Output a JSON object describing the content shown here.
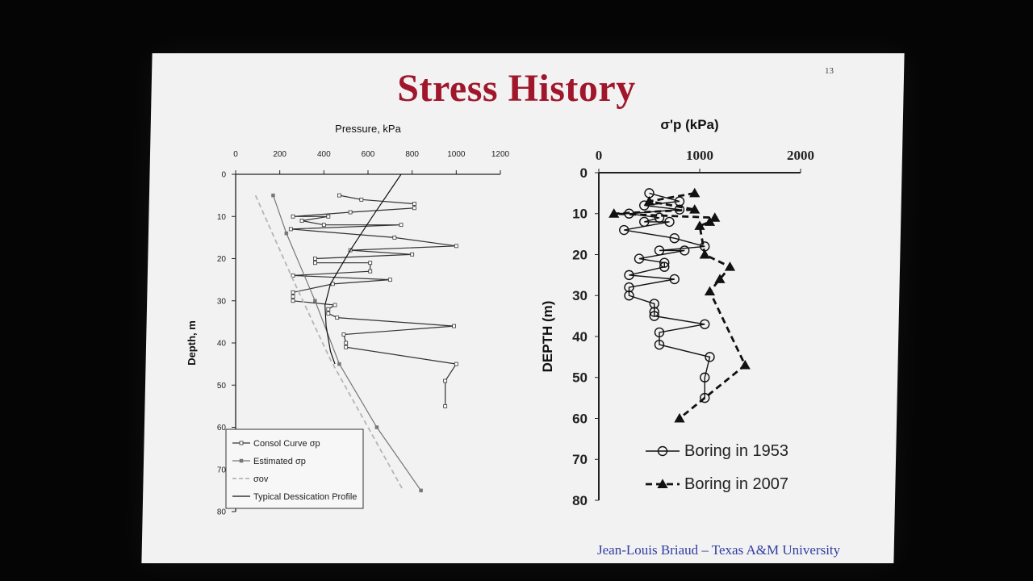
{
  "slide": {
    "title": "Stress History",
    "number": "13",
    "footer": "Jean-Louis Briaud – Texas A&M University"
  },
  "chart_data": [
    {
      "type": "line",
      "title": "",
      "xlabel": "Pressure, kPa",
      "ylabel": "Depth, m",
      "x_axis_position": "top",
      "xlim": [
        0,
        1200
      ],
      "ylim": [
        0,
        80
      ],
      "y_inverted": true,
      "x_ticks": [
        "0",
        "200",
        "400",
        "600",
        "800",
        "1000",
        "1200"
      ],
      "y_ticks": [
        "0",
        "10",
        "20",
        "30",
        "40",
        "50",
        "60",
        "70",
        "80"
      ],
      "grid": false,
      "legend_position": "bottom-left",
      "series": [
        {
          "name": "Consol Curve σp",
          "marker": "open-square",
          "color": "#333333",
          "points": [
            [
              470,
              5
            ],
            [
              570,
              6
            ],
            [
              810,
              7
            ],
            [
              810,
              8
            ],
            [
              520,
              9
            ],
            [
              260,
              10
            ],
            [
              420,
              10
            ],
            [
              300,
              11
            ],
            [
              400,
              12
            ],
            [
              750,
              12
            ],
            [
              250,
              13
            ],
            [
              720,
              15
            ],
            [
              1000,
              17
            ],
            [
              520,
              18
            ],
            [
              800,
              19
            ],
            [
              360,
              20
            ],
            [
              360,
              21
            ],
            [
              610,
              21
            ],
            [
              610,
              23
            ],
            [
              260,
              24
            ],
            [
              700,
              25
            ],
            [
              440,
              26
            ],
            [
              260,
              28
            ],
            [
              260,
              29
            ],
            [
              260,
              30
            ],
            [
              450,
              31
            ],
            [
              420,
              32
            ],
            [
              420,
              33
            ],
            [
              460,
              34
            ],
            [
              990,
              36
            ],
            [
              490,
              38
            ],
            [
              500,
              40
            ],
            [
              500,
              41
            ],
            [
              1000,
              45
            ],
            [
              950,
              49
            ],
            [
              950,
              55
            ]
          ]
        },
        {
          "name": "Estimated σp",
          "marker": "filled-square",
          "color": "#777777",
          "points": [
            [
              170,
              5
            ],
            [
              230,
              14
            ],
            [
              360,
              30
            ],
            [
              470,
              45
            ],
            [
              640,
              60
            ],
            [
              840,
              75
            ]
          ]
        },
        {
          "name": "σov",
          "style": "dashed",
          "color": "#b5b5b5",
          "points": [
            [
              90,
              5
            ],
            [
              260,
              25
            ],
            [
              430,
              44
            ],
            [
              600,
              60
            ],
            [
              760,
              75
            ]
          ]
        },
        {
          "name": "Typical Dessication Profile",
          "color": "#111111",
          "points": [
            [
              750,
              0
            ],
            [
              620,
              10
            ],
            [
              520,
              18
            ],
            [
              430,
              26
            ],
            [
              405,
              31
            ],
            [
              410,
              36
            ],
            [
              430,
              42
            ],
            [
              450,
              45
            ]
          ]
        }
      ]
    },
    {
      "type": "line",
      "title": "",
      "xlabel": "σ'p (kPa)",
      "ylabel": "DEPTH (m)",
      "x_axis_position": "top",
      "xlim": [
        0,
        2000
      ],
      "ylim": [
        0,
        80
      ],
      "y_inverted": true,
      "x_ticks": [
        "0",
        "1000",
        "2000"
      ],
      "y_ticks": [
        "0",
        "10",
        "20",
        "30",
        "40",
        "50",
        "60",
        "70",
        "80"
      ],
      "grid": false,
      "legend_position": "bottom-right",
      "series": [
        {
          "name": "Boring in 1953",
          "marker": "open-circle",
          "style": "solid",
          "color": "#111111",
          "points": [
            [
              500,
              5
            ],
            [
              800,
              7
            ],
            [
              450,
              8
            ],
            [
              800,
              9
            ],
            [
              300,
              10
            ],
            [
              600,
              11
            ],
            [
              450,
              12
            ],
            [
              700,
              12
            ],
            [
              250,
              14
            ],
            [
              750,
              16
            ],
            [
              1050,
              18
            ],
            [
              600,
              19
            ],
            [
              850,
              19
            ],
            [
              400,
              21
            ],
            [
              650,
              22
            ],
            [
              650,
              23
            ],
            [
              300,
              25
            ],
            [
              750,
              26
            ],
            [
              300,
              28
            ],
            [
              300,
              30
            ],
            [
              550,
              32
            ],
            [
              550,
              34
            ],
            [
              550,
              35
            ],
            [
              1050,
              37
            ],
            [
              600,
              39
            ],
            [
              600,
              42
            ],
            [
              1100,
              45
            ],
            [
              1050,
              50
            ],
            [
              1050,
              55
            ]
          ]
        },
        {
          "name": "Boring in 2007",
          "marker": "filled-triangle",
          "style": "dashed",
          "color": "#111111",
          "points": [
            [
              950,
              5
            ],
            [
              500,
              7
            ],
            [
              950,
              9
            ],
            [
              150,
              10
            ],
            [
              1150,
              11
            ],
            [
              1100,
              12
            ],
            [
              1000,
              13
            ],
            [
              1050,
              20
            ],
            [
              1300,
              23
            ],
            [
              1200,
              26
            ],
            [
              1100,
              29
            ],
            [
              1450,
              47
            ],
            [
              800,
              60
            ]
          ]
        }
      ]
    }
  ]
}
